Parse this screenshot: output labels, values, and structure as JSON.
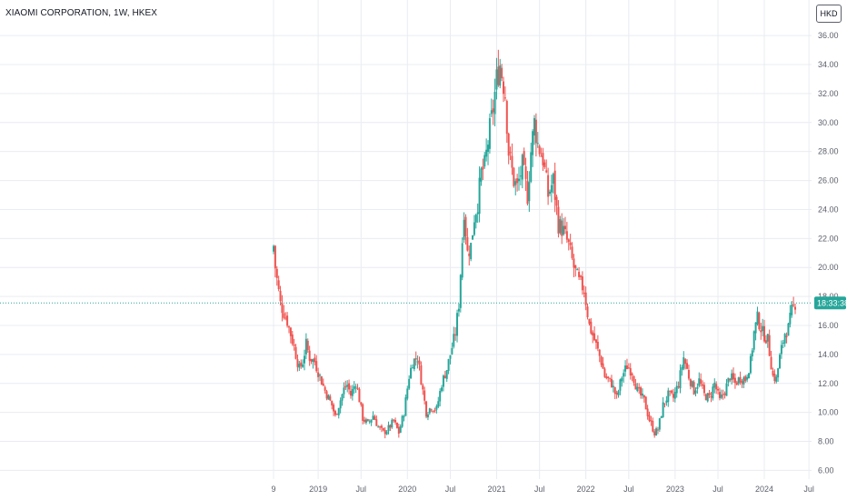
{
  "header": {
    "symbol_title": "XIAOMI CORPORATION, 1W, HKEX",
    "currency_button": "HKD"
  },
  "price_label": {
    "text": "18:33:38",
    "value": 17.55
  },
  "colors": {
    "up": "#26a69a",
    "down": "#ef5350",
    "grid": "#e9ecf1",
    "axis_text": "#5d606b",
    "price_line": "#26a69a"
  },
  "chart_data": {
    "type": "candlestick",
    "title": "XIAOMI CORPORATION, 1W, HKEX",
    "ylim": [
      5.4,
      37.2
    ],
    "y_ticks": [
      6,
      8,
      10,
      12,
      14,
      16,
      18,
      20,
      22,
      24,
      26,
      28,
      30,
      32,
      34,
      36
    ],
    "y_tick_labels": [
      "6.00",
      "8.00",
      "10.00",
      "12.00",
      "14.00",
      "16.00",
      "18.00",
      "20.00",
      "22.00",
      "24.00",
      "26.00",
      "28.00",
      "30.00",
      "32.00",
      "34.00",
      "36.00"
    ],
    "x_range": [
      "2018-07-09",
      "2024-07-08"
    ],
    "x_ticks": [
      {
        "label": "9",
        "date": "2018-07-09"
      },
      {
        "label": "2019",
        "date": "2019-01-07"
      },
      {
        "label": "Jul",
        "date": "2019-07-01"
      },
      {
        "label": "2020",
        "date": "2020-01-06"
      },
      {
        "label": "Jul",
        "date": "2020-06-29"
      },
      {
        "label": "2021",
        "date": "2021-01-04"
      },
      {
        "label": "Jul",
        "date": "2021-06-28"
      },
      {
        "label": "2022",
        "date": "2022-01-03"
      },
      {
        "label": "Jul",
        "date": "2022-06-27"
      },
      {
        "label": "2023",
        "date": "2023-01-02"
      },
      {
        "label": "Jul",
        "date": "2023-06-26"
      },
      {
        "label": "2024",
        "date": "2024-01-01"
      },
      {
        "label": "Jul",
        "date": "2024-07-01"
      }
    ],
    "grid": true,
    "weekly_close": [
      [
        "2018-07-09",
        21.5
      ],
      [
        "2018-07-16",
        20.0
      ],
      [
        "2018-08-06",
        17.5
      ],
      [
        "2018-09-03",
        16.3
      ],
      [
        "2018-10-01",
        14.5
      ],
      [
        "2018-10-22",
        13.0
      ],
      [
        "2018-11-05",
        13.5
      ],
      [
        "2018-11-19",
        14.7
      ],
      [
        "2018-12-03",
        13.8
      ],
      [
        "2018-12-24",
        13.5
      ],
      [
        "2019-01-07",
        12.8
      ],
      [
        "2019-02-04",
        11.5
      ],
      [
        "2019-03-04",
        10.5
      ],
      [
        "2019-03-18",
        9.7
      ],
      [
        "2019-04-01",
        10.5
      ],
      [
        "2019-04-22",
        11.6
      ],
      [
        "2019-05-06",
        11.9
      ],
      [
        "2019-05-20",
        11.2
      ],
      [
        "2019-06-10",
        12.1
      ],
      [
        "2019-06-24",
        10.9
      ],
      [
        "2019-07-08",
        9.6
      ],
      [
        "2019-07-29",
        9.2
      ],
      [
        "2019-08-19",
        9.8
      ],
      [
        "2019-09-09",
        9.0
      ],
      [
        "2019-09-30",
        8.6
      ],
      [
        "2019-10-21",
        8.9
      ],
      [
        "2019-11-11",
        9.4
      ],
      [
        "2019-12-02",
        8.6
      ],
      [
        "2019-12-23",
        10.0
      ],
      [
        "2020-01-13",
        12.5
      ],
      [
        "2020-01-27",
        13.5
      ],
      [
        "2020-02-17",
        13.8
      ],
      [
        "2020-03-09",
        11.5
      ],
      [
        "2020-03-23",
        10.0
      ],
      [
        "2020-04-13",
        10.4
      ],
      [
        "2020-05-04",
        10.2
      ],
      [
        "2020-05-25",
        12.0
      ],
      [
        "2020-06-15",
        13.0
      ],
      [
        "2020-06-29",
        14.0
      ],
      [
        "2020-07-20",
        15.5
      ],
      [
        "2020-08-03",
        17.5
      ],
      [
        "2020-08-24",
        24.0
      ],
      [
        "2020-09-07",
        21.0
      ],
      [
        "2020-09-21",
        21.5
      ],
      [
        "2020-10-05",
        23.5
      ],
      [
        "2020-10-19",
        24.5
      ],
      [
        "2020-11-02",
        26.5
      ],
      [
        "2020-11-16",
        27.0
      ],
      [
        "2020-12-07",
        29.5
      ],
      [
        "2020-12-21",
        31.0
      ],
      [
        "2021-01-04",
        33.0
      ],
      [
        "2021-01-18",
        34.0
      ],
      [
        "2021-02-08",
        32.0
      ],
      [
        "2021-02-22",
        28.0
      ],
      [
        "2021-03-15",
        26.0
      ],
      [
        "2021-03-29",
        25.5
      ],
      [
        "2021-04-19",
        27.0
      ],
      [
        "2021-05-10",
        25.0
      ],
      [
        "2021-05-24",
        28.0
      ],
      [
        "2021-06-07",
        30.0
      ],
      [
        "2021-06-21",
        28.5
      ],
      [
        "2021-07-12",
        27.5
      ],
      [
        "2021-08-02",
        25.0
      ],
      [
        "2021-08-23",
        26.0
      ],
      [
        "2021-09-13",
        23.0
      ],
      [
        "2021-10-04",
        22.5
      ],
      [
        "2021-10-25",
        21.5
      ],
      [
        "2021-11-15",
        20.0
      ],
      [
        "2021-12-06",
        19.0
      ],
      [
        "2021-12-27",
        18.5
      ],
      [
        "2022-01-17",
        16.0
      ],
      [
        "2022-02-07",
        15.0
      ],
      [
        "2022-03-07",
        13.5
      ],
      [
        "2022-03-21",
        12.5
      ],
      [
        "2022-04-18",
        12.0
      ],
      [
        "2022-05-09",
        11.0
      ],
      [
        "2022-05-30",
        12.5
      ],
      [
        "2022-06-20",
        13.2
      ],
      [
        "2022-07-11",
        12.8
      ],
      [
        "2022-08-01",
        11.5
      ],
      [
        "2022-08-29",
        10.8
      ],
      [
        "2022-09-19",
        9.5
      ],
      [
        "2022-10-10",
        8.6
      ],
      [
        "2022-10-24",
        8.8
      ],
      [
        "2022-11-14",
        10.5
      ],
      [
        "2022-12-05",
        11.2
      ],
      [
        "2022-12-26",
        11.0
      ],
      [
        "2023-01-16",
        12.0
      ],
      [
        "2023-02-06",
        13.8
      ],
      [
        "2023-02-27",
        12.5
      ],
      [
        "2023-03-20",
        11.5
      ],
      [
        "2023-04-10",
        12.2
      ],
      [
        "2023-05-01",
        11.2
      ],
      [
        "2023-05-22",
        11.0
      ],
      [
        "2023-06-12",
        12.0
      ],
      [
        "2023-07-03",
        10.8
      ],
      [
        "2023-07-24",
        11.5
      ],
      [
        "2023-08-14",
        12.5
      ],
      [
        "2023-09-04",
        12.0
      ],
      [
        "2023-09-25",
        12.4
      ],
      [
        "2023-10-16",
        12.3
      ],
      [
        "2023-11-06",
        13.5
      ],
      [
        "2023-11-20",
        15.5
      ],
      [
        "2023-12-04",
        16.5
      ],
      [
        "2023-12-25",
        15.5
      ],
      [
        "2024-01-15",
        15.0
      ],
      [
        "2024-02-05",
        12.5
      ],
      [
        "2024-02-19",
        12.3
      ],
      [
        "2024-03-04",
        13.8
      ],
      [
        "2024-03-25",
        15.5
      ],
      [
        "2024-04-08",
        15.8
      ],
      [
        "2024-04-22",
        17.0
      ],
      [
        "2024-05-06",
        17.55
      ]
    ]
  }
}
